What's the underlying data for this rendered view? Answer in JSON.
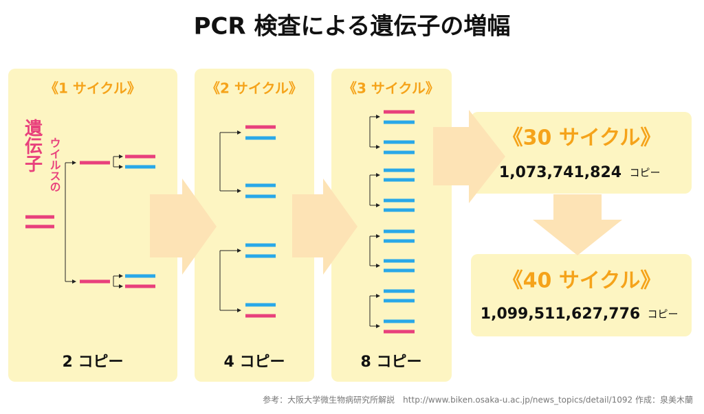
{
  "title": "PCR 検査による遺伝子の増幅",
  "gene_label": "遺伝子",
  "virus_label": "ウイルスの",
  "cycles": [
    {
      "heading": "《1 サイクル》",
      "copies": "2 コピー"
    },
    {
      "heading": "《2 サイクル》",
      "copies": "4 コピー"
    },
    {
      "heading": "《3 サイクル》",
      "copies": "8 コピー"
    }
  ],
  "results": [
    {
      "heading": "《30 サイクル》",
      "count": "1,073,741,824",
      "unit": "コピー"
    },
    {
      "heading": "《40 サイクル》",
      "count": "1,099,511,627,776",
      "unit": "コピー"
    }
  ],
  "footer": "参考：大阪大学微生物病研究所解説　http://www.biken.osaka-u.ac.jp/news_topics/detail/1092 作成：泉美木蘭"
}
